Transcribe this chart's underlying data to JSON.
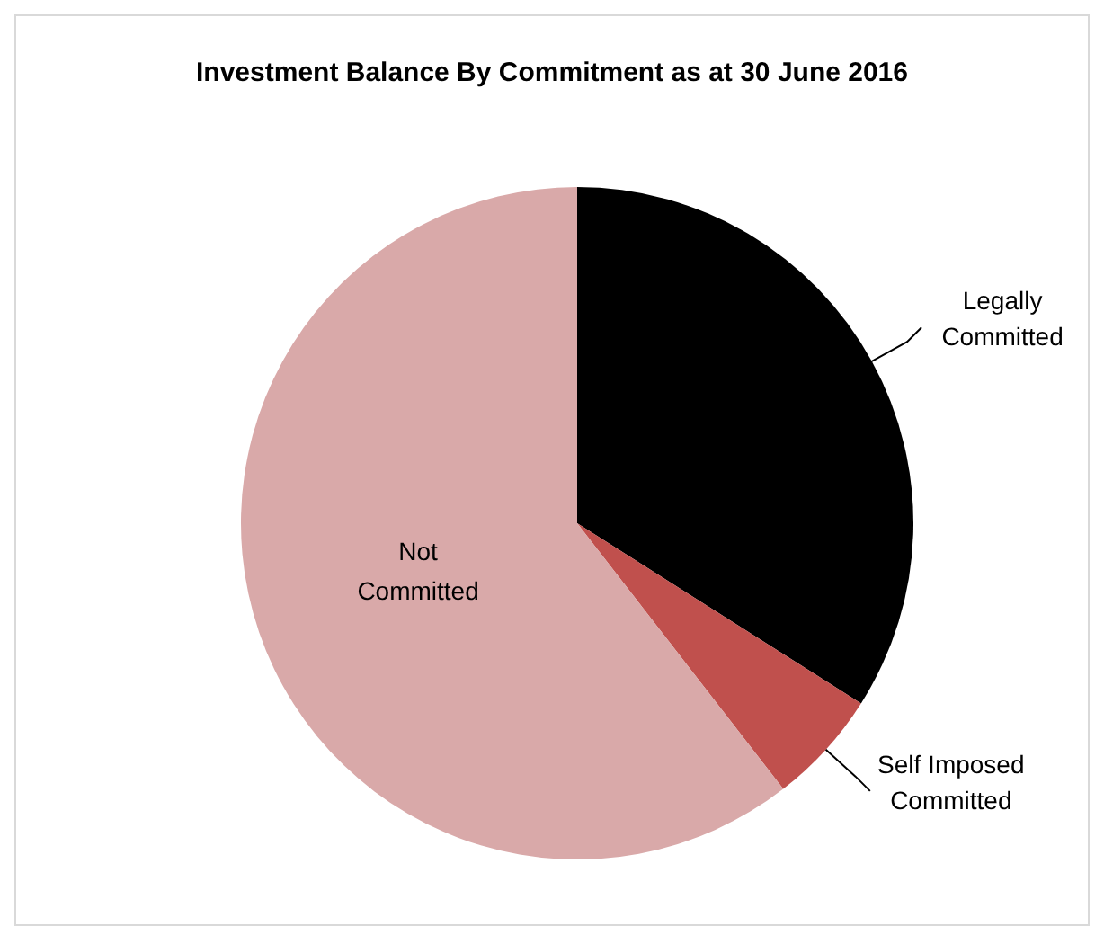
{
  "chart_data": {
    "type": "pie",
    "title": "Investment Balance By Commitment as at 30 June 2016",
    "categories": [
      "Legally Committed",
      "Self Imposed Committed",
      "Not Committed"
    ],
    "values": [
      34,
      5.5,
      60.5
    ],
    "colors": [
      "#000000",
      "#c0504d",
      "#d9a9a9"
    ]
  }
}
